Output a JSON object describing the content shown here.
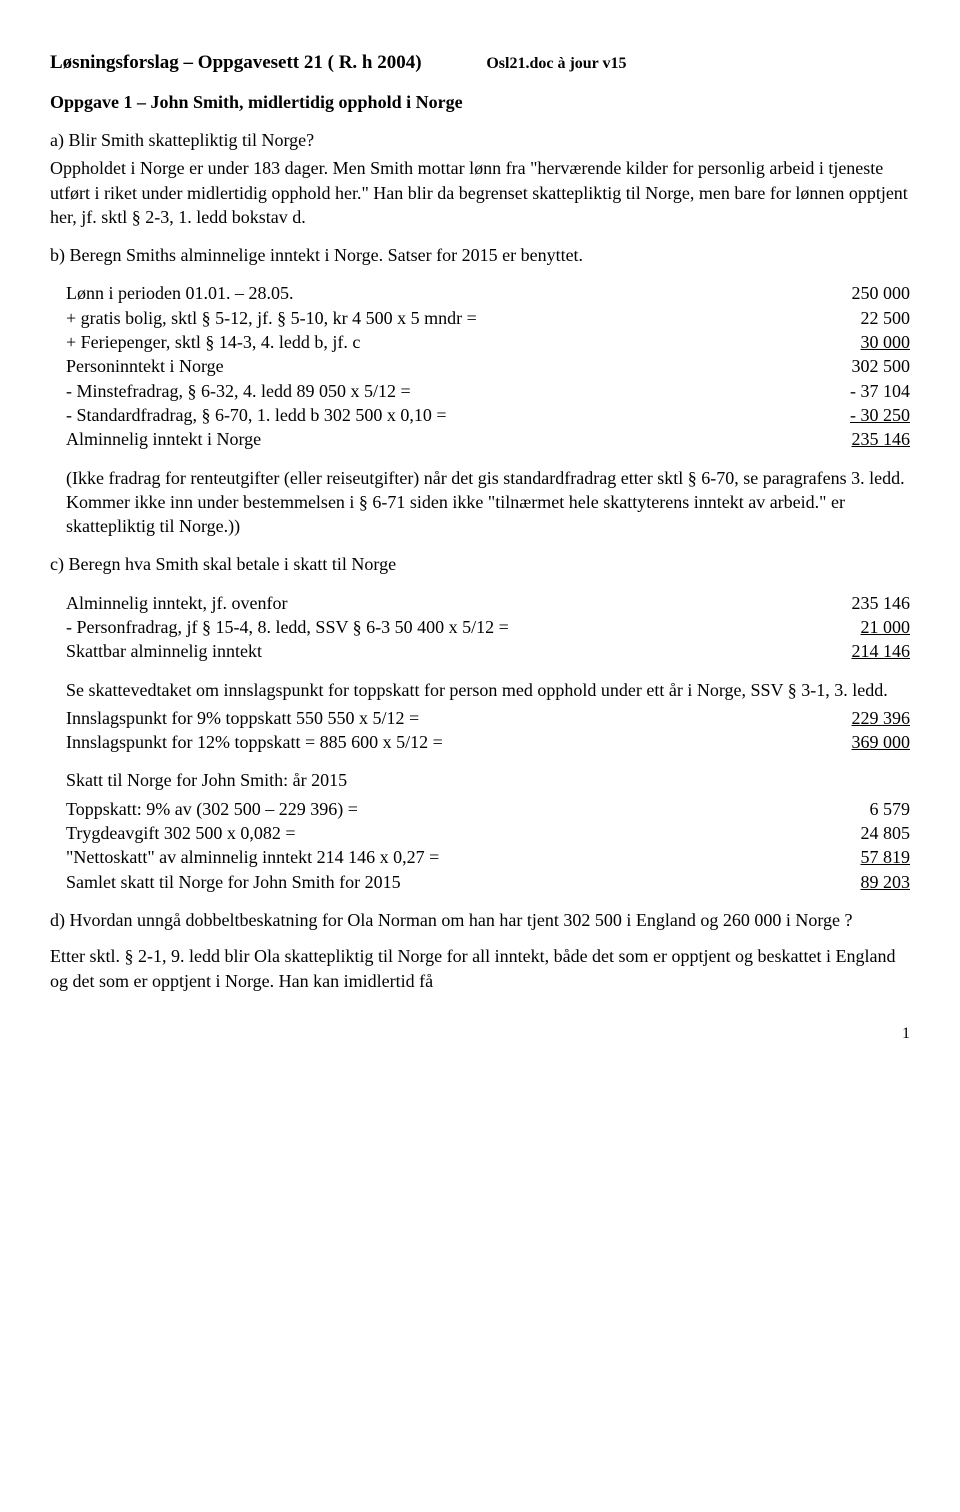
{
  "header": {
    "title": "Løsningsforslag – Oppgavesett  21 (  R. h 2004)",
    "docref": "Osl21.doc  à jour v15"
  },
  "task1_title": "Oppgave 1 – John Smith, midlertidig opphold i Norge",
  "a": {
    "q": "a)  Blir Smith skattepliktig til Norge?",
    "p": "Oppholdet i Norge er under 183 dager. Men Smith mottar lønn fra \"herværende kilder for personlig arbeid i tjeneste utført i riket under midlertidig opphold her.\" Han blir da  begrenset skattepliktig til Norge, men bare for lønnen opptjent her, jf. sktl § 2-3, 1. ledd bokstav d."
  },
  "b": {
    "heading": "b) Beregn Smiths alminnelige inntekt i Norge. Satser for 2015 er benyttet.",
    "rows": [
      {
        "label": "Lønn i perioden 01.01. – 28.05.",
        "val": "250 000"
      },
      {
        "label": "+ gratis bolig, sktl § 5-12, jf. § 5-10,  kr 4 500 x 5 mndr =",
        "val": "22 500"
      },
      {
        "label": "+ Feriepenger, sktl § 14-3, 4. ledd b, jf. c",
        "val": "30 000",
        "uval": true
      },
      {
        "label": "Personinntekt i Norge",
        "val": "302 500"
      },
      {
        "label": "- Minstefradrag, § 6-32, 4. ledd 89 050 x 5/12 =",
        "val": "- 37 104"
      },
      {
        "label": "- Standardfradrag, § 6-70, 1. ledd b  302 500 x 0,10 =",
        "val": "- 30 250",
        "uval": true
      },
      {
        "label": "Alminnelig inntekt i Norge",
        "val": "235 146",
        "uval": true
      }
    ],
    "note": "(Ikke fradrag for renteutgifter (eller reiseutgifter) når det gis standardfradrag etter sktl § 6-70, se paragrafens 3. ledd. Kommer ikke inn under bestemmelsen i § 6-71 siden ikke \"tilnærmet hele skattyterens inntekt av arbeid.\" er skattepliktig til Norge.))"
  },
  "c": {
    "heading": "c) Beregn hva Smith skal betale i skatt til Norge",
    "block1": [
      {
        "label": "Alminnelig inntekt, jf. ovenfor",
        "val": "235 146"
      },
      {
        "label": "- Personfradrag, jf § 15-4, 8. ledd, SSV § 6-3   50 400 x 5/12 =",
        "val": "21 000",
        "uval": true
      },
      {
        "label": "Skattbar alminnelig inntekt",
        "val": "214 146",
        "uval": true
      }
    ],
    "midtext": "Se skattevedtaket om innslagspunkt for toppskatt for person med opphold under ett år i Norge, SSV § 3-1, 3. ledd.",
    "block2": [
      {
        "label": "Innslagspunkt for 9% toppskatt  550 550  x 5/12 =",
        "val": "229 396",
        "uval": true
      },
      {
        "label": "Innslagspunkt for 12% toppskatt =  885 600 x 5/12 =",
        "val": "369 000",
        "uval": true
      }
    ],
    "block3_title": "Skatt til Norge for John Smith: år 2015",
    "block3": [
      {
        "label": "Toppskatt: 9% av  (302 500 – 229 396) =",
        "val": "6 579"
      },
      {
        "label": "Trygdeavgift  302 500 x 0,082 =",
        "val": "24 805"
      },
      {
        "label": "\"Nettoskatt\" av alminnelig inntekt  214 146 x 0,27 =",
        "val": "57 819",
        "uval": true
      },
      {
        "label": "Samlet skatt til Norge for John Smith for 2015",
        "val": "89 203",
        "uval": true
      }
    ]
  },
  "d": {
    "q": "d)  Hvordan unngå dobbeltbeskatning  for Ola  Norman om han har tjent 302 500 i England og 260 000 i Norge ?",
    "p": "Etter sktl. § 2-1, 9. ledd blir Ola skattepliktig til Norge for all inntekt, både det som er opptjent og beskattet i England og det som er opptjent i Norge. Han kan imidlertid få"
  },
  "pagenum": "1"
}
